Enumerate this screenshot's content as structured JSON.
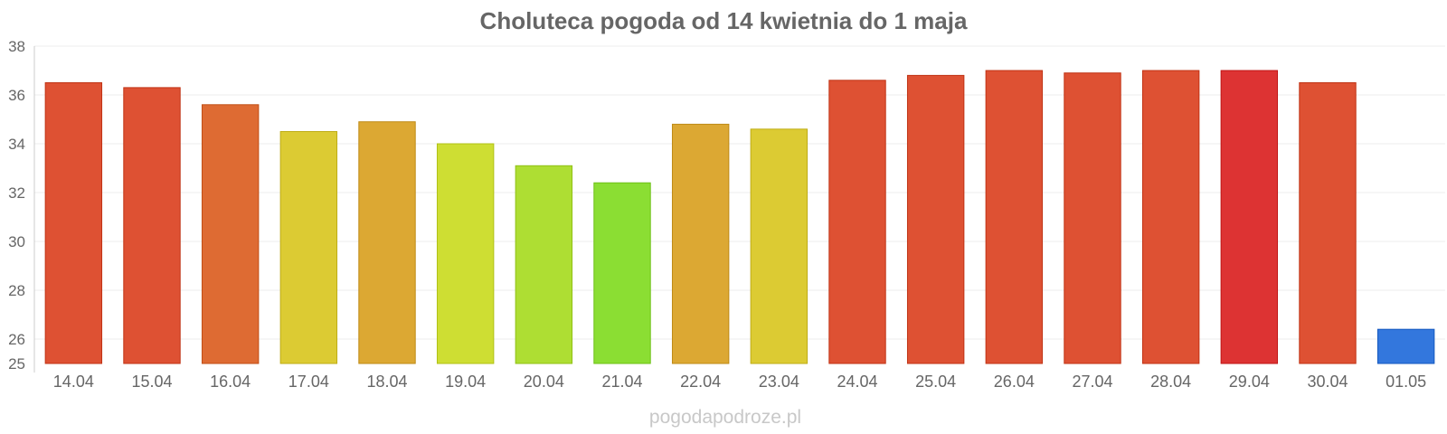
{
  "chart_data": {
    "type": "bar",
    "title": "Choluteca pogoda od 14 kwietnia do 1 maja",
    "xlabel": "",
    "ylabel": "",
    "ylim": [
      25,
      38
    ],
    "y_ticks": [
      "25",
      "26",
      "28",
      "30",
      "32",
      "34",
      "36",
      "38"
    ],
    "grid": true,
    "legend": "none",
    "categories": [
      "14.04",
      "15.04",
      "16.04",
      "17.04",
      "18.04",
      "19.04",
      "20.04",
      "21.04",
      "22.04",
      "23.04",
      "24.04",
      "25.04",
      "26.04",
      "27.04",
      "28.04",
      "29.04",
      "30.04",
      "01.05"
    ],
    "values": [
      36.5,
      36.3,
      35.6,
      34.5,
      34.9,
      34.0,
      33.1,
      32.4,
      34.8,
      34.6,
      36.6,
      36.8,
      37.0,
      36.9,
      37.0,
      37.0,
      36.5,
      26.4
    ],
    "colors": [
      "#de5133",
      "#de5133",
      "#de6b33",
      "#dccb33",
      "#dca833",
      "#cede33",
      "#aede33",
      "#8bde33",
      "#dca833",
      "#dccb33",
      "#de5133",
      "#de5133",
      "#de5133",
      "#de5133",
      "#de5133",
      "#dd3333",
      "#de5133",
      "#3377dd"
    ]
  },
  "watermark": "pogodapodroze.pl"
}
